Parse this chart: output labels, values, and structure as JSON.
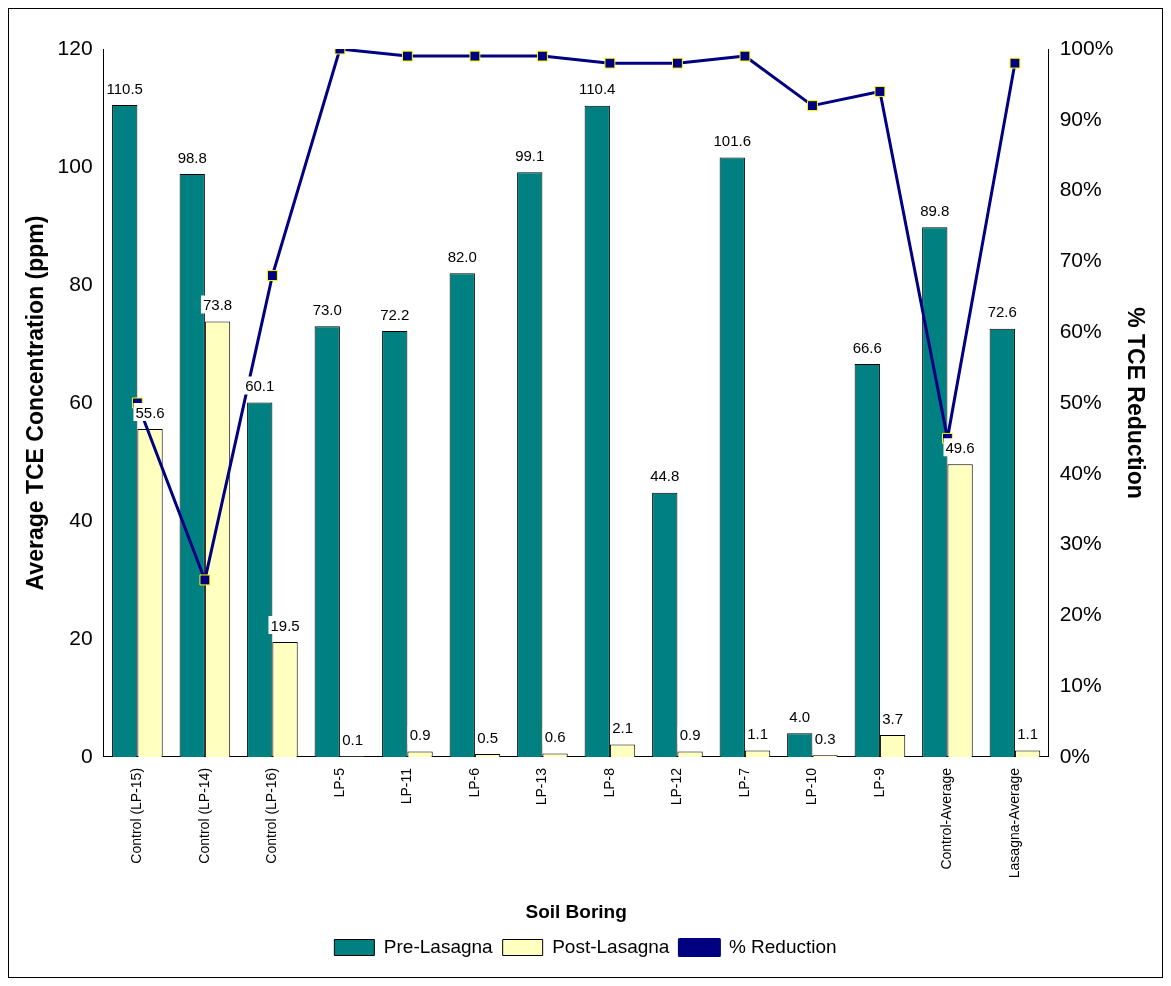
{
  "chart_data": {
    "type": "bar",
    "xlabel": "Soil Boring",
    "ylabel": "Average TCE Concentration (ppm)",
    "y2label": "% TCE Reduction",
    "categories": [
      "Control (LP-15)",
      "Control (LP-14)",
      "Control (LP-16)",
      "LP-5",
      "LP-11",
      "LP-6",
      "LP-13",
      "LP-8",
      "LP-12",
      "LP-7",
      "LP-10",
      "LP-9",
      "Control-Average",
      "Lasagna-Average"
    ],
    "series": [
      {
        "name": "Pre-Lasagna",
        "color": "#008080",
        "values": [
          110.5,
          98.8,
          60.1,
          73.0,
          72.2,
          82.0,
          99.1,
          110.4,
          44.8,
          101.6,
          4.0,
          66.6,
          89.8,
          72.6
        ],
        "value_labels": [
          "110.5",
          "98.8",
          "60.1",
          "73.0",
          "72.2",
          "82.0",
          "99.1",
          "110.4",
          "44.8",
          "101.6",
          "4.0",
          "66.6",
          "89.8",
          "72.6"
        ]
      },
      {
        "name": "Post-Lasagna",
        "color": "#ffffc0",
        "values": [
          55.6,
          73.8,
          19.5,
          0.1,
          0.9,
          0.5,
          0.6,
          2.1,
          0.9,
          1.1,
          0.3,
          3.7,
          49.6,
          1.1
        ],
        "value_labels": [
          "55.6",
          "73.8",
          "19.5",
          "0.1",
          "0.9",
          "0.5",
          "0.6",
          "2.1",
          "0.9",
          "1.1",
          "0.3",
          "3.7",
          "49.6",
          "1.1"
        ]
      },
      {
        "name": "% Reduction",
        "type": "line",
        "axis": "y2",
        "color": "#000080",
        "values": [
          50,
          25,
          68,
          100,
          99,
          99,
          99,
          98,
          98,
          99,
          92,
          94,
          45,
          98
        ]
      }
    ],
    "ylim": [
      0,
      120
    ],
    "yticks": [
      0,
      20,
      40,
      60,
      80,
      100,
      120
    ],
    "y2lim": [
      0,
      100
    ],
    "y2ticks": [
      {
        "value": 0,
        "label": "0%"
      },
      {
        "value": 10,
        "label": "10%"
      },
      {
        "value": 20,
        "label": "20%"
      },
      {
        "value": 30,
        "label": "30%"
      },
      {
        "value": 40,
        "label": "40%"
      },
      {
        "value": 50,
        "label": "50%"
      },
      {
        "value": 60,
        "label": "60%"
      },
      {
        "value": 70,
        "label": "70%"
      },
      {
        "value": 80,
        "label": "80%"
      },
      {
        "value": 90,
        "label": "90%"
      },
      {
        "value": 100,
        "label": "100%"
      }
    ],
    "marker": "square",
    "line_style": "solid",
    "legend": "bottom",
    "grid": false
  }
}
